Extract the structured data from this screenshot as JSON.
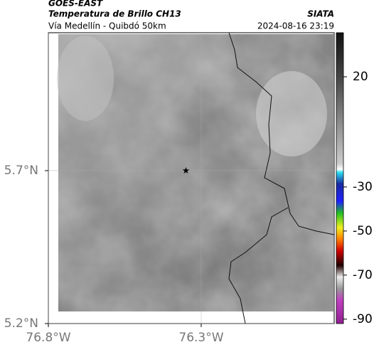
{
  "header": {
    "title": "GOES-EAST",
    "subtitle": "Temperatura de Brillo CH13",
    "route": "Vía Medellín - Quibdó 50km",
    "source": "SIATA",
    "datetime": "2024-08-16 23:19"
  },
  "map": {
    "xlim": [
      -76.8,
      -75.865
    ],
    "ylim": [
      5.2,
      6.151
    ],
    "xticks": [
      {
        "value": -76.8,
        "label": "76.8°W"
      },
      {
        "value": -76.3,
        "label": "76.3°W"
      }
    ],
    "yticks": [
      {
        "value": 5.7,
        "label": "5.7°N"
      },
      {
        "value": 5.2,
        "label": "5.2°N"
      }
    ],
    "grid": true,
    "station": {
      "lon": -76.35,
      "lat": 5.7
    }
  },
  "colorbar": {
    "lim": [
      -92,
      40
    ],
    "ticks": [
      20,
      -30,
      -50,
      -70,
      -90
    ]
  }
}
